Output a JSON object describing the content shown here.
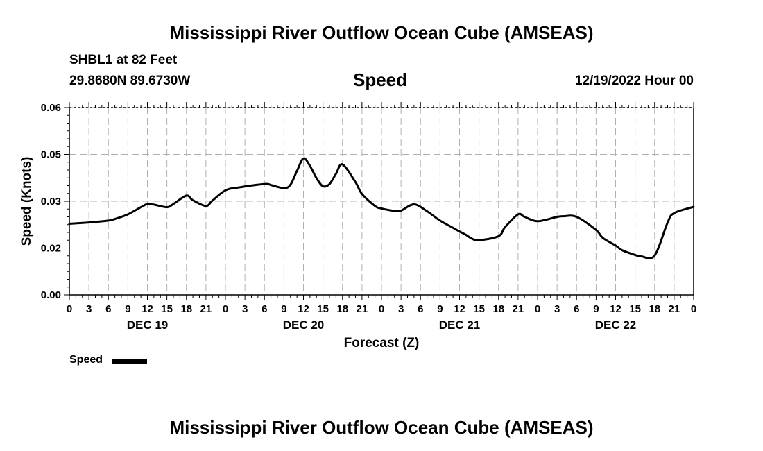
{
  "header": {
    "title": "Mississippi River Outflow Ocean Cube (AMSEAS)",
    "station": "SHBL1 at 82 Feet",
    "coords": "29.8680N  89.6730W",
    "variable": "Speed",
    "issue": "12/19/2022 Hour 00"
  },
  "footer": {
    "title": "Mississippi River Outflow Ocean Cube (AMSEAS)"
  },
  "legend": {
    "label": "Speed"
  },
  "chart_data": {
    "type": "line",
    "title": "Speed",
    "xlabel": "Forecast (Z)",
    "ylabel": "Speed (Knots)",
    "xlim": [
      0,
      96
    ],
    "ylim": [
      0.0,
      0.06
    ],
    "grid": true,
    "x_tick_values": [
      0,
      3,
      6,
      9,
      12,
      15,
      18,
      21,
      24,
      27,
      30,
      33,
      36,
      39,
      42,
      45,
      48,
      51,
      54,
      57,
      60,
      63,
      66,
      69,
      72,
      75,
      78,
      81,
      84,
      87,
      90,
      93,
      96
    ],
    "x_tick_labels": [
      "0",
      "3",
      "6",
      "9",
      "12",
      "15",
      "18",
      "21",
      "0",
      "3",
      "6",
      "9",
      "12",
      "15",
      "18",
      "21",
      "0",
      "3",
      "6",
      "9",
      "12",
      "15",
      "18",
      "21",
      "0",
      "3",
      "6",
      "9",
      "12",
      "15",
      "18",
      "21",
      "0"
    ],
    "y_tick_values": [
      0.0,
      0.015,
      0.03,
      0.045,
      0.06
    ],
    "y_tick_labels": [
      "0.00",
      "0.02",
      "0.03",
      "0.05",
      "0.06"
    ],
    "day_labels": [
      {
        "x": 12,
        "label": "DEC 19"
      },
      {
        "x": 36,
        "label": "DEC 20"
      },
      {
        "x": 60,
        "label": "DEC 21"
      },
      {
        "x": 84,
        "label": "DEC 22"
      }
    ],
    "series": [
      {
        "name": "Speed",
        "color": "#000000",
        "x": [
          0,
          3,
          6,
          7,
          9,
          11,
          12,
          13,
          15,
          16,
          18,
          19,
          21,
          22,
          24,
          26,
          30,
          31,
          33,
          34,
          35,
          36,
          37,
          38,
          39,
          40,
          41,
          42,
          44,
          45,
          47,
          48,
          50,
          51,
          53,
          55,
          57,
          59,
          60,
          61,
          62,
          63,
          66,
          67,
          69,
          70,
          72,
          75,
          76,
          78,
          81,
          82,
          84,
          85,
          87,
          88,
          90,
          92,
          93,
          96
        ],
        "y": [
          0.0228,
          0.0232,
          0.0238,
          0.0243,
          0.0258,
          0.0281,
          0.0291,
          0.0289,
          0.0281,
          0.0291,
          0.0318,
          0.0303,
          0.0285,
          0.0302,
          0.0335,
          0.0344,
          0.0355,
          0.0352,
          0.0342,
          0.0353,
          0.0397,
          0.0437,
          0.0413,
          0.0374,
          0.0348,
          0.0355,
          0.0388,
          0.0418,
          0.0361,
          0.0323,
          0.0285,
          0.0277,
          0.0269,
          0.027,
          0.029,
          0.0268,
          0.0238,
          0.0215,
          0.0203,
          0.0192,
          0.0179,
          0.0175,
          0.0188,
          0.0217,
          0.0258,
          0.025,
          0.0236,
          0.025,
          0.0252,
          0.025,
          0.0208,
          0.0183,
          0.0158,
          0.0143,
          0.0128,
          0.0123,
          0.0126,
          0.0232,
          0.0262,
          0.0282
        ]
      }
    ]
  }
}
